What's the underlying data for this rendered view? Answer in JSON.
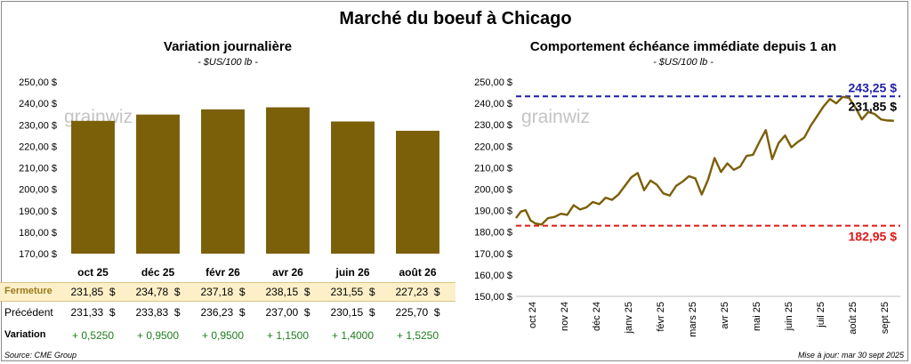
{
  "page": {
    "title": "Marché du boeuf à Chicago",
    "source": "Source: CME Group",
    "updated": "Mise à jour: mar 30 sept 2025",
    "watermark": "grainwiz"
  },
  "left_table": {
    "rows": [
      {
        "label": "Fermeture",
        "values": [
          "231,85  $",
          "234,78  $",
          "237,18  $",
          "238,15  $",
          "231,55  $",
          "227,23  $"
        ]
      },
      {
        "label": "Précédent",
        "values": [
          "231,33  $",
          "233,83  $",
          "236,23  $",
          "237,00  $",
          "230,15  $",
          "225,70  $"
        ]
      },
      {
        "label": "Variation",
        "values": [
          "+ 0,5250",
          "+ 0,9500",
          "+ 0,9500",
          "+ 1,1500",
          "+ 1,4000",
          "+ 1,5250"
        ]
      }
    ]
  },
  "chart_data": [
    {
      "type": "bar",
      "title": "Variation  journalière",
      "subtitle": "- $US/100 lb -",
      "categories": [
        "oct 25",
        "déc 25",
        "févr 26",
        "avr 26",
        "juin 26",
        "août 26"
      ],
      "values": [
        231.85,
        234.78,
        237.18,
        238.15,
        231.55,
        227.23
      ],
      "ylim": [
        170,
        250
      ],
      "yticks": [
        "170,00 $",
        "180,00 $",
        "190,00 $",
        "200,00 $",
        "210,00 $",
        "220,00 $",
        "230,00 $",
        "240,00 $",
        "250,00 $"
      ],
      "bar_color": "#7b5f09",
      "grid": false
    },
    {
      "type": "line",
      "title": "Comportement  échéance immédiate depuis 1 an",
      "subtitle": "- $US/100 lb -",
      "ylim": [
        150,
        250
      ],
      "yticks": [
        "150,00 $",
        "160,00 $",
        "170,00 $",
        "180,00 $",
        "190,00 $",
        "200,00 $",
        "210,00 $",
        "220,00 $",
        "230,00 $",
        "240,00 $",
        "250,00 $"
      ],
      "xticks": [
        "oct 24",
        "nov 24",
        "déc 24",
        "janv 25",
        "févr 25",
        "mars 25",
        "avr 25",
        "mai 25",
        "juin 25",
        "juil 25",
        "août 25",
        "sept 25"
      ],
      "line_color": "#7b5f09",
      "x": [
        0,
        0.15,
        0.3,
        0.45,
        0.6,
        0.8,
        1.0,
        1.2,
        1.4,
        1.6,
        1.8,
        2.0,
        2.2,
        2.4,
        2.6,
        2.8,
        3.0,
        3.2,
        3.4,
        3.6,
        3.8,
        4.0,
        4.2,
        4.4,
        4.6,
        4.8,
        5.0,
        5.2,
        5.4,
        5.6,
        5.8,
        6.0,
        6.2,
        6.4,
        6.6,
        6.8,
        7.0,
        7.2,
        7.4,
        7.6,
        7.8,
        8.0,
        8.2,
        8.4,
        8.6,
        8.8,
        9.0,
        9.2,
        9.4,
        9.6,
        9.8,
        10.0,
        10.2,
        10.4,
        10.6,
        10.8,
        11.0,
        11.2,
        11.4,
        11.6,
        11.8
      ],
      "values": [
        186.5,
        189.5,
        190.2,
        185.5,
        184.0,
        183.5,
        186.5,
        187.0,
        188.5,
        188.0,
        192.5,
        190.5,
        191.5,
        194.0,
        193.0,
        196.0,
        195.0,
        197.5,
        201.5,
        205.5,
        207.5,
        199.5,
        204.0,
        202.0,
        198.0,
        197.0,
        201.5,
        203.5,
        206.0,
        205.0,
        197.5,
        204.5,
        214.5,
        208.0,
        212.0,
        209.0,
        210.5,
        215.5,
        216.0,
        222.0,
        227.5,
        214.0,
        221.5,
        225.0,
        219.5,
        222.0,
        224.0,
        229.5,
        234.0,
        238.5,
        242.0,
        240.0,
        243.0,
        242.5,
        238.0,
        232.5,
        236.0,
        235.0,
        232.5,
        232.0,
        231.85
      ],
      "reference_lines": [
        {
          "value": 243.25,
          "label": "243,25 $",
          "color": "#1f1fa8"
        },
        {
          "value": 182.95,
          "label": "182,95 $",
          "color": "#e01818"
        }
      ],
      "last_label": "231,85 $",
      "grid": false
    }
  ]
}
